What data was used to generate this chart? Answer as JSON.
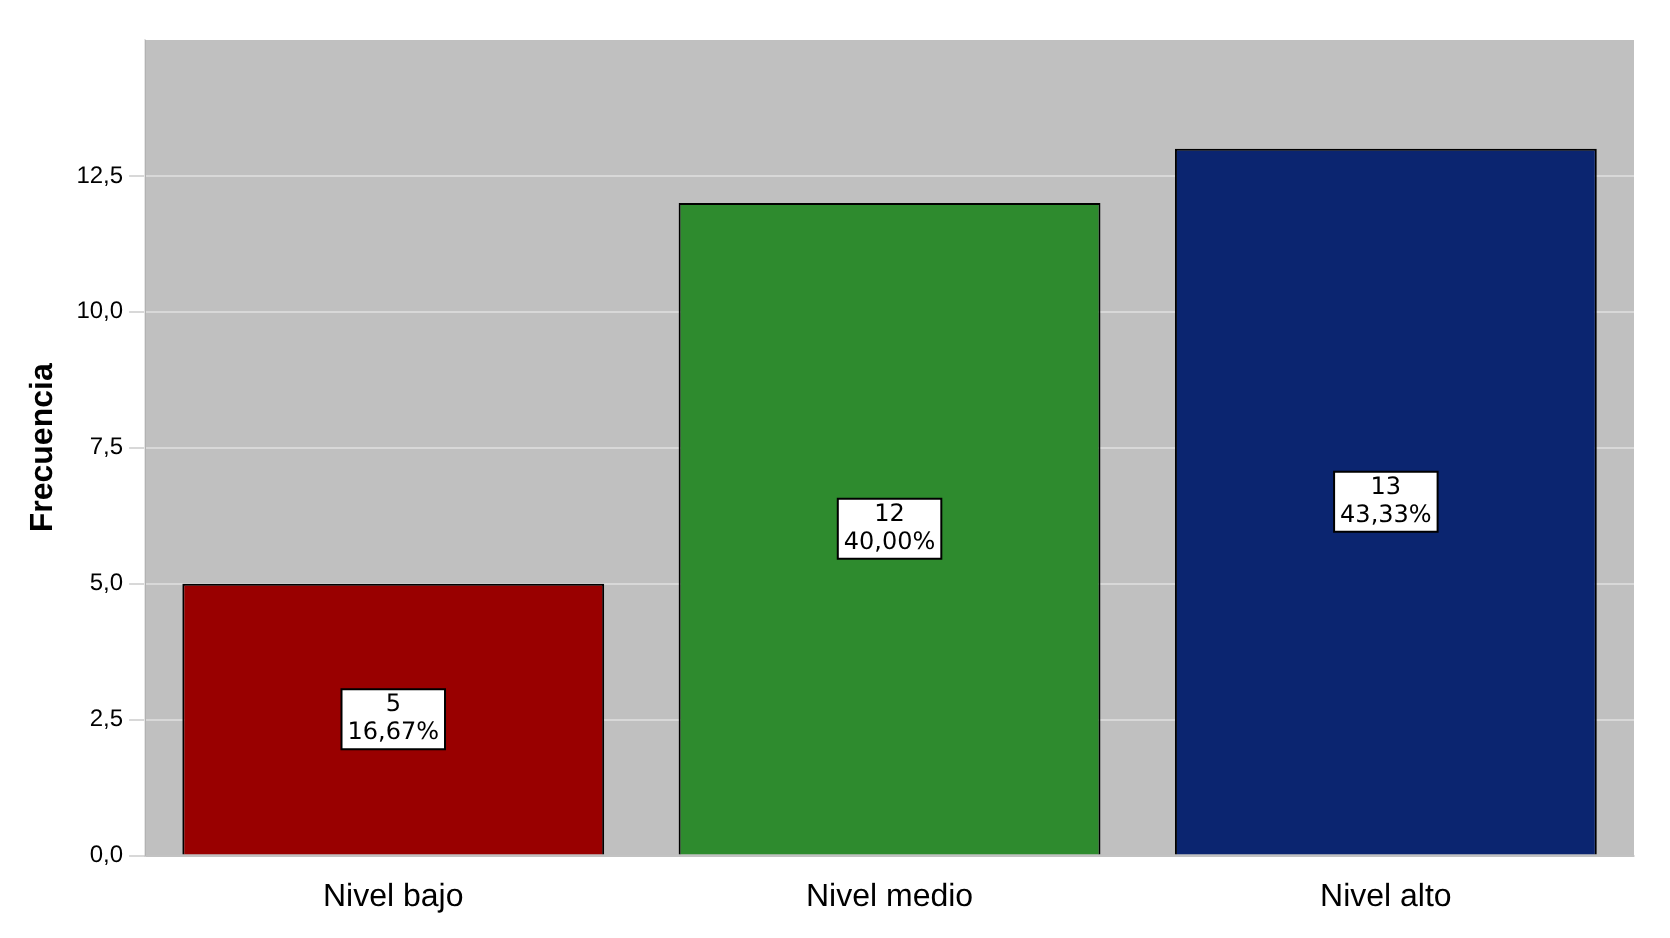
{
  "chart_data": {
    "type": "bar",
    "ylabel": "Frecuencia",
    "categories": [
      "Nivel bajo",
      "Nivel medio",
      "Nivel alto"
    ],
    "values": [
      5,
      12,
      13
    ],
    "colors": [
      "#990000",
      "#2e8b2e",
      "#0b2570"
    ],
    "value_labels": [
      "5\n16,67%",
      "12\n40,00%",
      "13\n43,33%"
    ],
    "ylim": [
      0,
      15
    ],
    "yticks": [
      {
        "value": 0,
        "label": "0,0"
      },
      {
        "value": 2.5,
        "label": "2,5"
      },
      {
        "value": 5,
        "label": "5,0"
      },
      {
        "value": 7.5,
        "label": "7,5"
      },
      {
        "value": 10,
        "label": "10,0"
      },
      {
        "value": 12.5,
        "label": "12,5"
      }
    ],
    "grid": "y",
    "legend": false
  }
}
